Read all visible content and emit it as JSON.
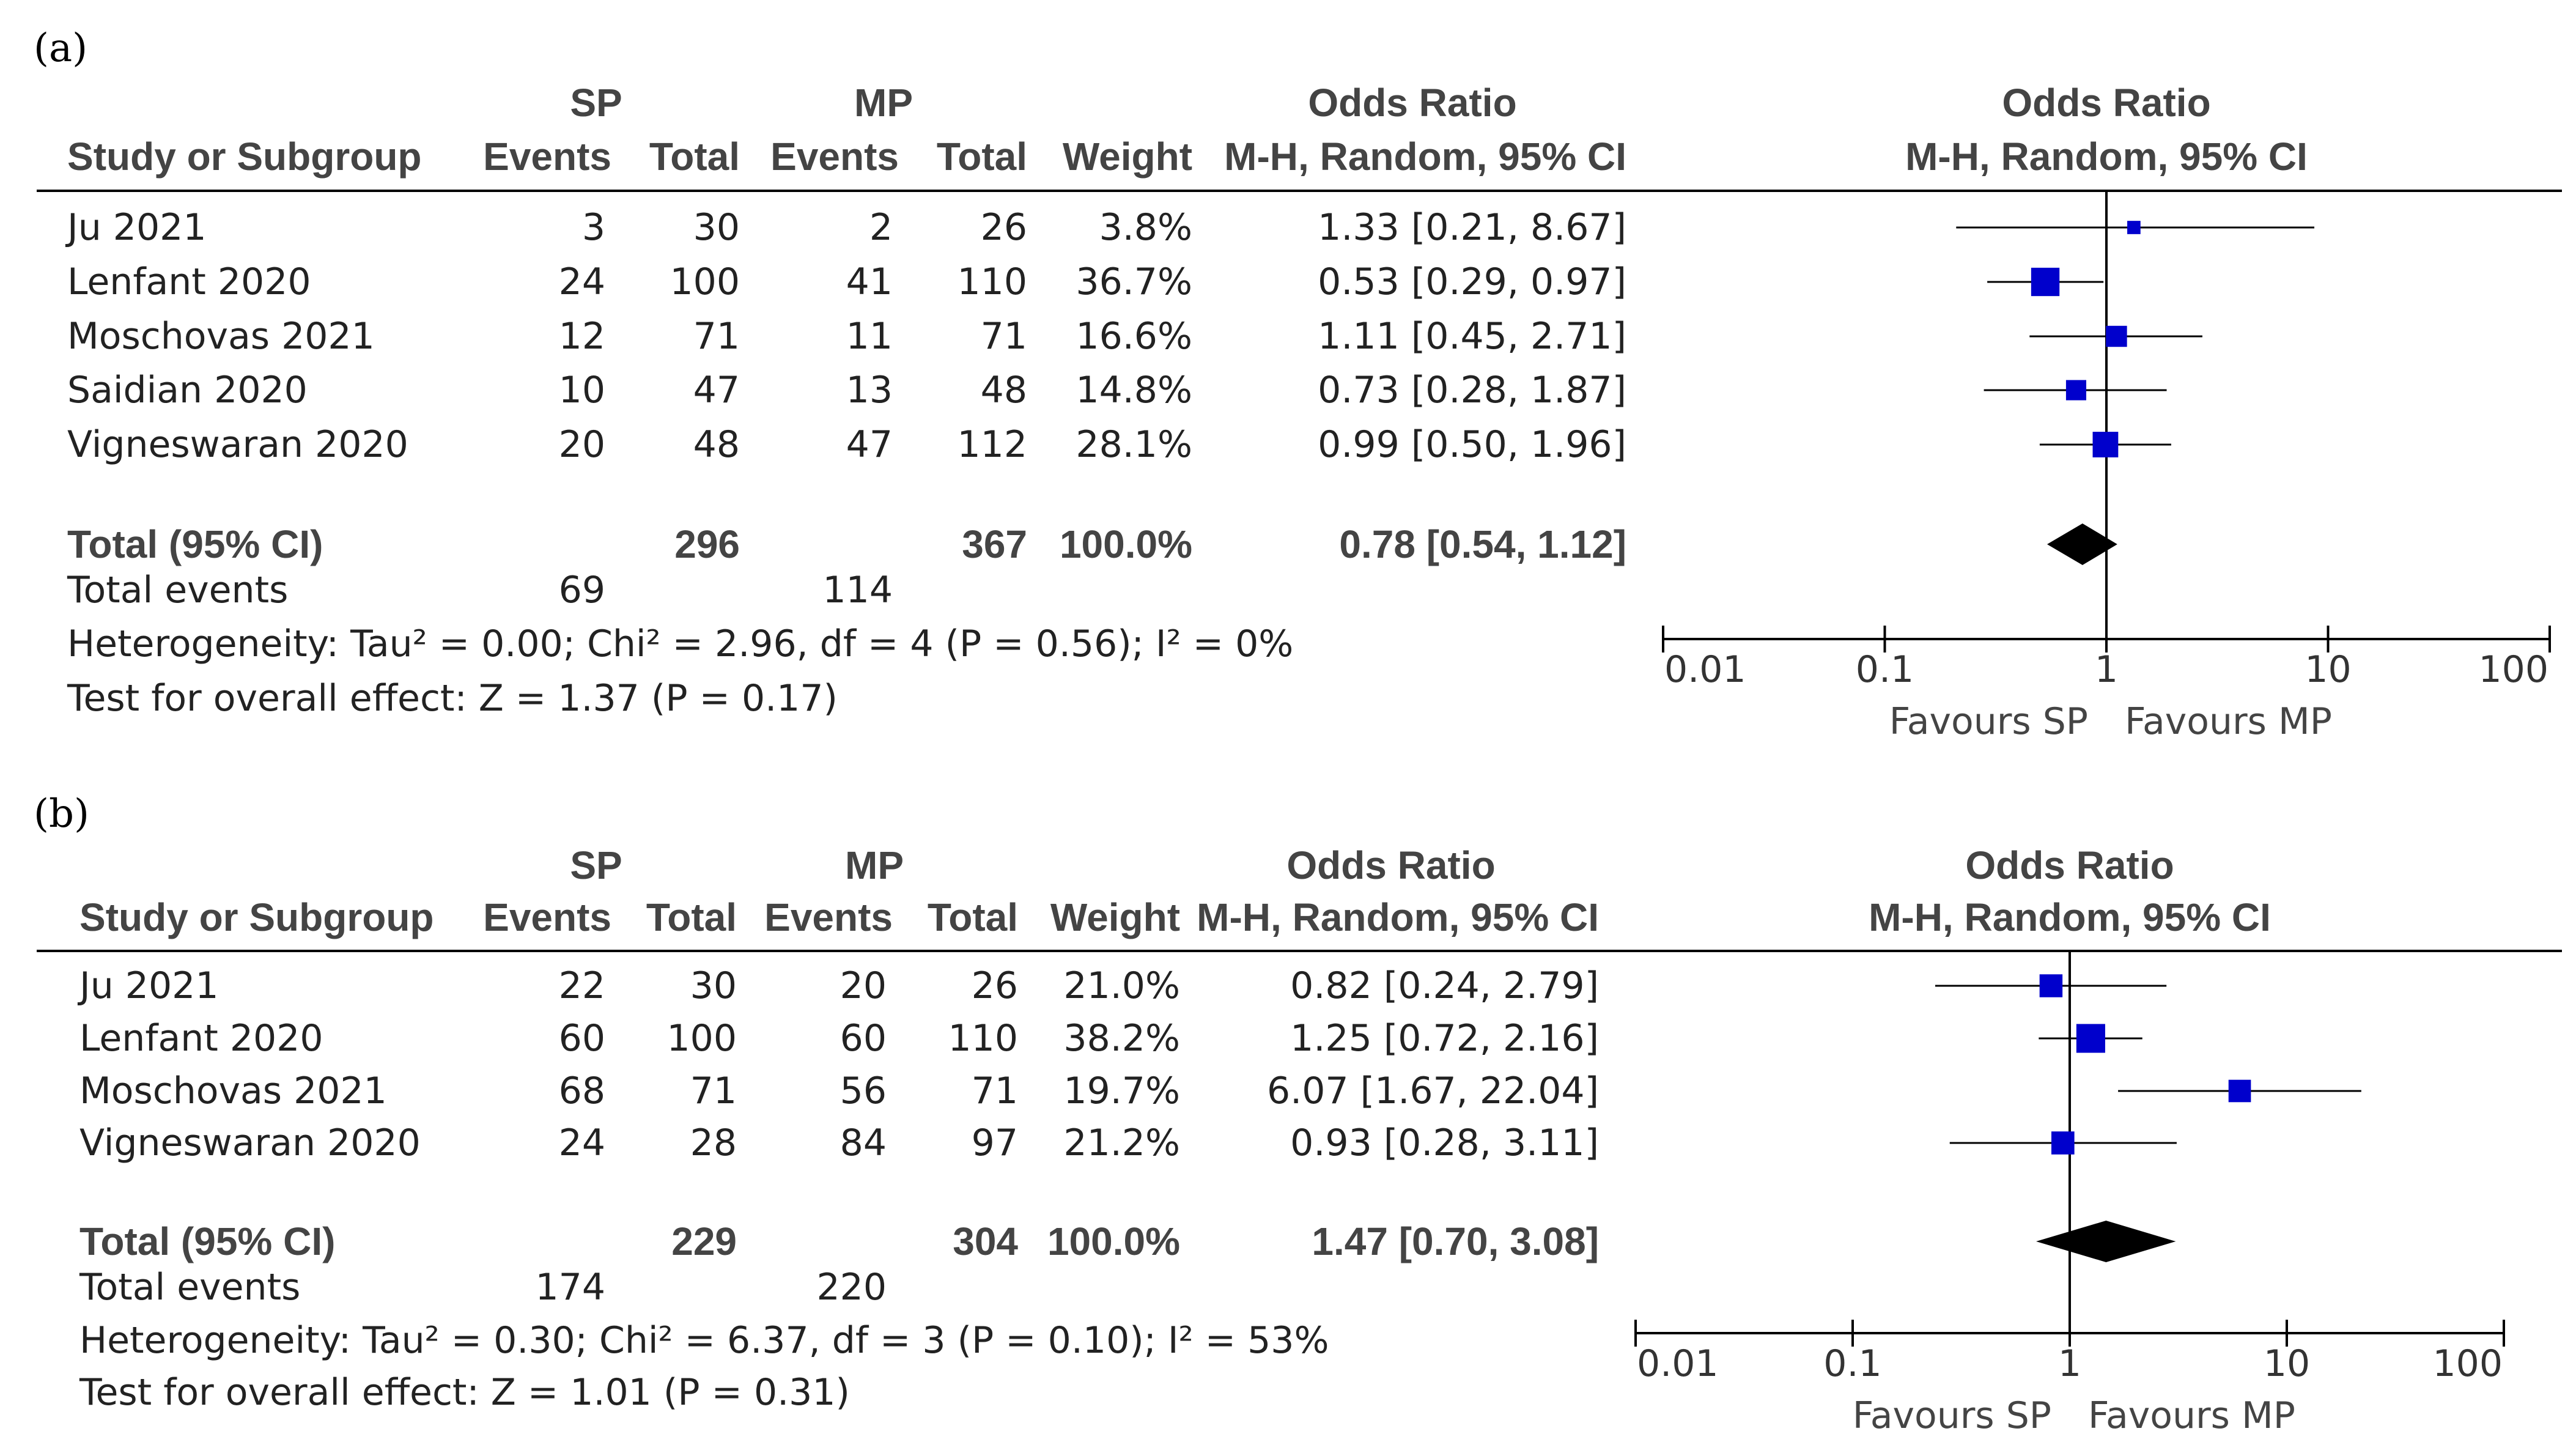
{
  "chart_data": [
    {
      "type": "forest",
      "panel_label": "(a)",
      "headers": {
        "group1": "SP",
        "group2": "MP",
        "study": "Study or Subgroup",
        "events": "Events",
        "total": "Total",
        "weight": "Weight",
        "or_title": "Odds Ratio",
        "or_method": "M-H, Random, 95% CI"
      },
      "studies": [
        {
          "name": "Ju 2021",
          "e1": "3",
          "t1": "30",
          "e2": "2",
          "t2": "26",
          "weight": "3.8%",
          "ci_text": "1.33 [0.21, 8.67]",
          "or": 1.33,
          "lo": 0.21,
          "hi": 8.67,
          "w": 3.8
        },
        {
          "name": "Lenfant 2020",
          "e1": "24",
          "t1": "100",
          "e2": "41",
          "t2": "110",
          "weight": "36.7%",
          "ci_text": "0.53 [0.29, 0.97]",
          "or": 0.53,
          "lo": 0.29,
          "hi": 0.97,
          "w": 36.7
        },
        {
          "name": "Moschovas 2021",
          "e1": "12",
          "t1": "71",
          "e2": "11",
          "t2": "71",
          "weight": "16.6%",
          "ci_text": "1.11 [0.45, 2.71]",
          "or": 1.11,
          "lo": 0.45,
          "hi": 2.71,
          "w": 16.6
        },
        {
          "name": "Saidian 2020",
          "e1": "10",
          "t1": "47",
          "e2": "13",
          "t2": "48",
          "weight": "14.8%",
          "ci_text": "0.73 [0.28, 1.87]",
          "or": 0.73,
          "lo": 0.28,
          "hi": 1.87,
          "w": 14.8
        },
        {
          "name": "Vigneswaran 2020",
          "e1": "20",
          "t1": "48",
          "e2": "47",
          "t2": "112",
          "weight": "28.1%",
          "ci_text": "0.99 [0.50, 1.96]",
          "or": 0.99,
          "lo": 0.5,
          "hi": 1.96,
          "w": 28.1
        }
      ],
      "total": {
        "label": "Total (95% CI)",
        "t1": "296",
        "t2": "367",
        "weight": "100.0%",
        "ci_text": "0.78 [0.54, 1.12]",
        "or": 0.78,
        "lo": 0.54,
        "hi": 1.12
      },
      "total_events": {
        "label": "Total events",
        "e1": "69",
        "e2": "114"
      },
      "heterogeneity": "Heterogeneity: Tau² = 0.00; Chi² = 2.96, df = 4 (P = 0.56); I² = 0%",
      "overall_effect": "Test for overall effect: Z = 1.37 (P = 0.17)",
      "axis": {
        "scale": "log",
        "ticks": [
          0.01,
          0.1,
          1,
          10,
          100
        ],
        "tick_labels": [
          "0.01",
          "0.1",
          "1",
          "10",
          "100"
        ]
      },
      "favours_left": "Favours SP",
      "favours_right": "Favours MP"
    },
    {
      "type": "forest",
      "panel_label": "(b)",
      "headers": {
        "group1": "SP",
        "group2": "MP",
        "study": "Study or Subgroup",
        "events": "Events",
        "total": "Total",
        "weight": "Weight",
        "or_title": "Odds Ratio",
        "or_method": "M-H, Random, 95% CI"
      },
      "studies": [
        {
          "name": "Ju 2021",
          "e1": "22",
          "t1": "30",
          "e2": "20",
          "t2": "26",
          "weight": "21.0%",
          "ci_text": "0.82 [0.24, 2.79]",
          "or": 0.82,
          "lo": 0.24,
          "hi": 2.79,
          "w": 21.0
        },
        {
          "name": "Lenfant 2020",
          "e1": "60",
          "t1": "100",
          "e2": "60",
          "t2": "110",
          "weight": "38.2%",
          "ci_text": "1.25 [0.72, 2.16]",
          "or": 1.25,
          "lo": 0.72,
          "hi": 2.16,
          "w": 38.2
        },
        {
          "name": "Moschovas 2021",
          "e1": "68",
          "t1": "71",
          "e2": "56",
          "t2": "71",
          "weight": "19.7%",
          "ci_text": "6.07 [1.67, 22.04]",
          "or": 6.07,
          "lo": 1.67,
          "hi": 22.04,
          "w": 19.7
        },
        {
          "name": "Vigneswaran 2020",
          "e1": "24",
          "t1": "28",
          "e2": "84",
          "t2": "97",
          "weight": "21.2%",
          "ci_text": "0.93 [0.28, 3.11]",
          "or": 0.93,
          "lo": 0.28,
          "hi": 3.11,
          "w": 21.2
        }
      ],
      "total": {
        "label": "Total (95% CI)",
        "t1": "229",
        "t2": "304",
        "weight": "100.0%",
        "ci_text": "1.47 [0.70, 3.08]",
        "or": 1.47,
        "lo": 0.7,
        "hi": 3.08
      },
      "total_events": {
        "label": "Total events",
        "e1": "174",
        "e2": "220"
      },
      "heterogeneity": "Heterogeneity: Tau² = 0.30; Chi² = 6.37, df = 3 (P = 0.10); I² = 53%",
      "overall_effect": "Test for overall effect: Z = 1.01 (P = 0.31)",
      "axis": {
        "scale": "log",
        "ticks": [
          0.01,
          0.1,
          1,
          10,
          100
        ],
        "tick_labels": [
          "0.01",
          "0.1",
          "1",
          "10",
          "100"
        ]
      },
      "favours_left": "Favours SP",
      "favours_right": "Favours MP"
    }
  ]
}
